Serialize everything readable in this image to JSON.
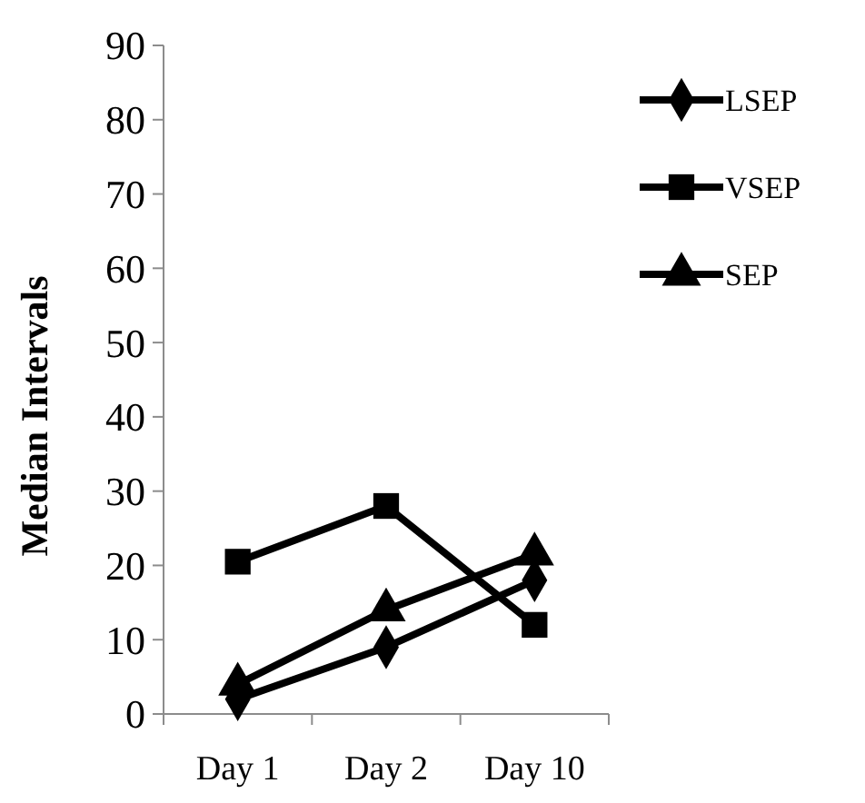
{
  "chart_data": {
    "type": "line",
    "ylabel": "Median Intervals",
    "categories": [
      "Day 1",
      "Day 2",
      "Day 10"
    ],
    "ylim": [
      0,
      90
    ],
    "yticks": [
      0,
      10,
      20,
      30,
      40,
      50,
      60,
      70,
      80,
      90
    ],
    "grid": false,
    "legend": "right",
    "series": [
      {
        "name": "LSEP",
        "color": "#000000",
        "marker": "diamond",
        "values": [
          2,
          9,
          18
        ]
      },
      {
        "name": "VSEP",
        "color": "#000000",
        "marker": "square",
        "values": [
          20.5,
          28,
          12
        ]
      },
      {
        "name": "SEP",
        "color": "#000000",
        "marker": "triangle",
        "values": [
          4,
          14,
          21.5
        ]
      }
    ]
  }
}
